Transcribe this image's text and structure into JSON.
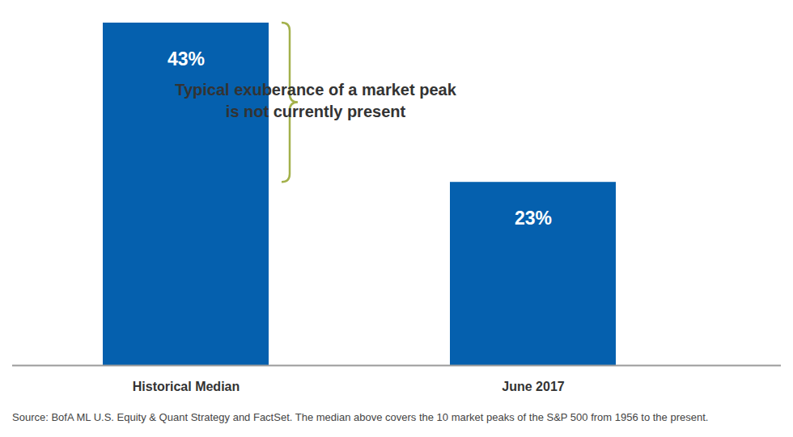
{
  "chart_data": {
    "type": "bar",
    "categories": [
      "Historical Median",
      "June 2017"
    ],
    "values": [
      43,
      23
    ],
    "value_labels": [
      "43%",
      "23%"
    ],
    "data_labels": true,
    "color": "#0560ae",
    "ylim": [
      0,
      43
    ],
    "tick_labels": "x",
    "annotation": "Typical exuberance of a market peak\nis not currently present",
    "caption": "Source: BofA ML U.S. Equity & Quant Strategy and FactSet. The median above covers the 10 market peaks of the S&P 500 from 1956 to the present."
  }
}
